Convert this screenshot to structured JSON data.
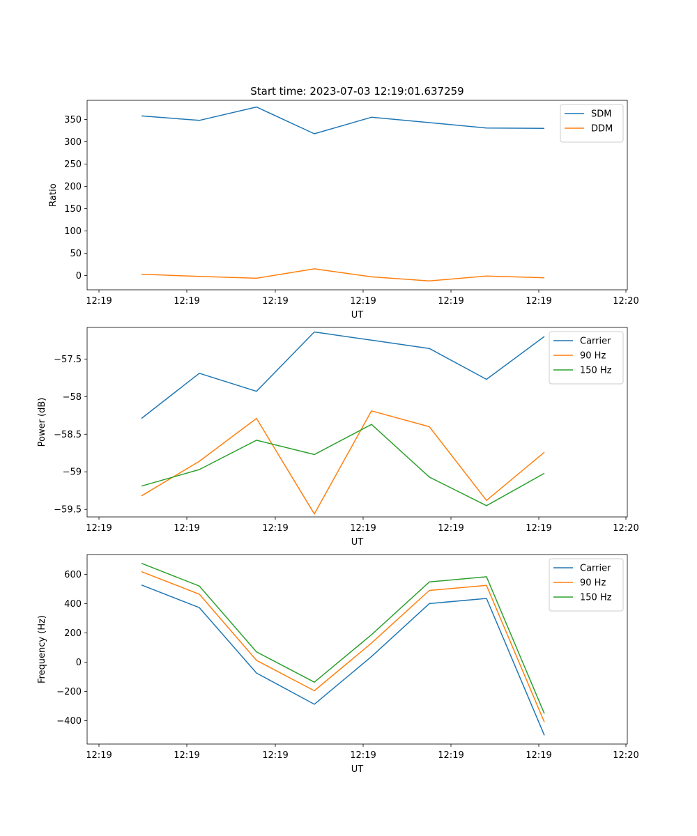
{
  "figure_title": "Start time: 2023-07-03 12:19:01.637259",
  "chart_data": [
    {
      "type": "line",
      "title": "Start time: 2023-07-03 12:19:01.637259",
      "xlabel": "UT",
      "ylabel": "Ratio",
      "xticks": [
        "12:19",
        "12:19",
        "12:19",
        "12:19",
        "12:19",
        "12:19",
        "12:20"
      ],
      "yticks": [
        0,
        50,
        100,
        150,
        200,
        250,
        300,
        350
      ],
      "ylim": [
        -32,
        393
      ],
      "legend_position": "top-right",
      "series": [
        {
          "name": "SDM",
          "color": "#1f77b4",
          "values": [
            358,
            348,
            378,
            318,
            355,
            343,
            331,
            330
          ]
        },
        {
          "name": "DDM",
          "color": "#ff7f0e",
          "values": [
            3,
            -2,
            -6,
            15,
            -3,
            -12,
            -1,
            -5
          ]
        }
      ]
    },
    {
      "type": "line",
      "title": "",
      "xlabel": "UT",
      "ylabel": "Power (dB)",
      "xticks": [
        "12:19",
        "12:19",
        "12:19",
        "12:19",
        "12:19",
        "12:19",
        "12:20"
      ],
      "yticks": [
        -57.5,
        -58.0,
        -58.5,
        -59.0,
        -59.5
      ],
      "ylim": [
        -59.6,
        -57.08
      ],
      "legend_position": "top-right",
      "series": [
        {
          "name": "Carrier",
          "color": "#1f77b4",
          "values": [
            -58.29,
            -57.69,
            -57.93,
            -57.14,
            -57.25,
            -57.36,
            -57.77,
            -57.2
          ]
        },
        {
          "name": "90 Hz",
          "color": "#ff7f0e",
          "values": [
            -59.32,
            -58.86,
            -58.29,
            -59.56,
            -58.19,
            -58.4,
            -59.38,
            -58.74
          ]
        },
        {
          "name": "150 Hz",
          "color": "#2ca02c",
          "values": [
            -59.19,
            -58.97,
            -58.58,
            -58.77,
            -58.37,
            -59.07,
            -59.45,
            -59.02
          ]
        }
      ]
    },
    {
      "type": "line",
      "title": "",
      "xlabel": "UT",
      "ylabel": "Frequency (Hz)",
      "xticks": [
        "12:19",
        "12:19",
        "12:19",
        "12:19",
        "12:19",
        "12:19",
        "12:20"
      ],
      "yticks": [
        600,
        400,
        200,
        0,
        -200,
        -400
      ],
      "ylim": [
        -560,
        735
      ],
      "legend_position": "top-right",
      "series": [
        {
          "name": "Carrier",
          "color": "#1f77b4",
          "values": [
            527,
            372,
            -75,
            -288,
            38,
            400,
            435,
            -500
          ]
        },
        {
          "name": "90 Hz",
          "color": "#ff7f0e",
          "values": [
            618,
            464,
            12,
            -196,
            130,
            490,
            524,
            -410
          ]
        },
        {
          "name": "150 Hz",
          "color": "#2ca02c",
          "values": [
            675,
            520,
            70,
            -137,
            187,
            548,
            583,
            -352
          ]
        }
      ]
    }
  ]
}
